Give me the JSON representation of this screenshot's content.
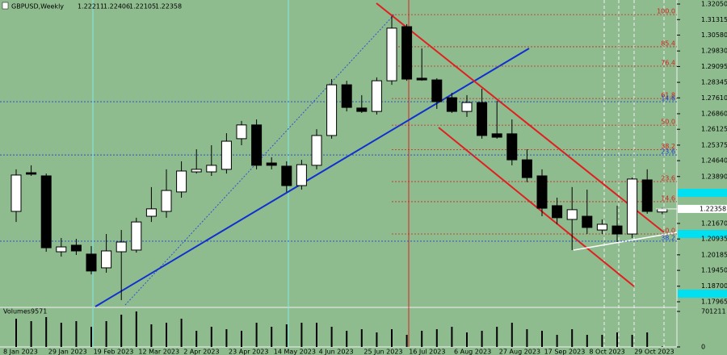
{
  "chart_data": {
    "type": "candlestick",
    "title": "GBPUSD,Weekly",
    "categories": [
      "8 Jan 2023",
      null,
      null,
      "29 Jan 2023",
      null,
      null,
      "19 Feb 2023",
      null,
      null,
      "12 Mar 2023",
      null,
      null,
      "2 Apr 2023",
      null,
      null,
      "23 Apr 2023",
      null,
      null,
      "14 May 2023",
      null,
      null,
      "4 Jun 2023",
      null,
      null,
      "25 Jun 2023",
      null,
      null,
      "16 Jul 2023",
      null,
      null,
      "6 Aug 2023",
      null,
      null,
      "27 Aug 2023",
      null,
      null,
      "17 Sep 2023",
      null,
      null,
      "8 Oct 2023",
      null,
      null,
      "29 Oct 2023",
      null
    ],
    "open": [
      1.2224,
      1.2407,
      1.2392,
      1.2033,
      1.2064,
      1.2022,
      1.1957,
      1.2033,
      1.2041,
      1.2201,
      1.2224,
      1.2316,
      1.2411,
      1.2411,
      1.2423,
      1.2568,
      1.2633,
      1.2453,
      1.2438,
      1.2346,
      1.2442,
      1.2583,
      1.2823,
      1.2713,
      1.2697,
      1.2842,
      1.3098,
      1.2854,
      1.2846,
      1.2762,
      1.2697,
      1.2739,
      1.2591,
      1.2591,
      1.2468,
      1.2392,
      1.2251,
      1.2186,
      1.2201,
      1.2136,
      1.2155,
      1.2117,
      1.2373,
      1.22211
    ],
    "high": [
      1.2423,
      1.2442,
      1.2403,
      1.2098,
      1.2094,
      1.206,
      1.2117,
      1.2136,
      1.2194,
      1.2339,
      1.2423,
      1.2461,
      1.2518,
      1.2537,
      1.2594,
      1.2652,
      1.2659,
      1.248,
      1.2461,
      1.2468,
      1.2613,
      1.285,
      1.2842,
      1.2774,
      1.2858,
      1.3148,
      1.311,
      1.2995,
      1.2854,
      1.2785,
      1.2774,
      1.2804,
      1.2747,
      1.2659,
      1.2518,
      1.2423,
      1.2289,
      1.2339,
      1.2327,
      1.2186,
      1.2251,
      1.2384,
      1.2423,
      1.22406
    ],
    "low": [
      1.2174,
      1.2392,
      1.2033,
      1.201,
      1.2018,
      1.1926,
      1.1934,
      1.1804,
      1.2029,
      1.2174,
      1.2194,
      1.2289,
      1.2403,
      1.2392,
      1.2403,
      1.2537,
      1.2423,
      1.2423,
      1.2316,
      1.2327,
      1.2423,
      1.2568,
      1.2697,
      1.269,
      1.2682,
      1.2823,
      1.2842,
      1.2842,
      1.2709,
      1.269,
      1.2671,
      1.2568,
      1.2568,
      1.2442,
      1.2362,
      1.2201,
      1.2163,
      1.2041,
      1.2117,
      1.2117,
      1.2079,
      1.2098,
      1.2213,
      1.22105
    ],
    "close": [
      1.2396,
      1.24,
      1.2052,
      1.2056,
      1.2037,
      1.1942,
      1.2037,
      1.2079,
      1.2174,
      1.2236,
      1.2323,
      1.2415,
      1.2423,
      1.2442,
      1.2556,
      1.2633,
      1.2442,
      1.2442,
      1.2346,
      1.2445,
      1.2583,
      1.2823,
      1.2716,
      1.2697,
      1.2842,
      1.3091,
      1.285,
      1.2846,
      1.2743,
      1.2697,
      1.2739,
      1.2583,
      1.2575,
      1.2468,
      1.2384,
      1.2239,
      1.2194,
      1.2232,
      1.2148,
      1.2163,
      1.2117,
      1.2377,
      1.2224,
      1.22358
    ],
    "up_color": "#ffffff",
    "down_color": "#000000",
    "ylim": [
      1.17736,
      1.32241
    ],
    "yticks": [
      {
        "value": 1.3205,
        "label": "1.32050"
      },
      {
        "value": 1.31315,
        "label": "1.31315"
      },
      {
        "value": 1.3058,
        "label": "1.30580"
      },
      {
        "value": 1.2983,
        "label": "1.29830"
      },
      {
        "value": 1.29095,
        "label": "1.29095"
      },
      {
        "value": 1.28345,
        "label": "1.28345"
      },
      {
        "value": 1.2761,
        "label": "1.27610"
      },
      {
        "value": 1.2686,
        "label": "1.26860"
      },
      {
        "value": 1.26125,
        "label": "1.26125"
      },
      {
        "value": 1.25375,
        "label": "1.25375"
      },
      {
        "value": 1.2464,
        "label": "1.24640"
      },
      {
        "value": 1.2389,
        "label": "1.23890"
      },
      {
        "value": 1.2167,
        "label": "1.21670"
      },
      {
        "value": 1.20935,
        "label": "1.20935"
      },
      {
        "value": 1.20185,
        "label": "1.20185"
      },
      {
        "value": 1.1945,
        "label": "1.19450"
      },
      {
        "value": 1.187,
        "label": "1.18700"
      },
      {
        "value": 1.17965,
        "label": "1.17965"
      }
    ],
    "fib_levels": [
      {
        "label": "100.0",
        "value": 1.3155,
        "color": "#d42020"
      },
      {
        "label": "85.4",
        "value": 1.3003,
        "color": "#d42020"
      },
      {
        "label": "76.4",
        "value": 1.2911,
        "color": "#d42020"
      },
      {
        "label": "61.8",
        "value": 1.2758,
        "color": "#d42020"
      },
      {
        "label": "14.6",
        "value": 1.2743,
        "color": "#2040d0"
      },
      {
        "label": "50.0",
        "value": 1.2632,
        "color": "#d42020"
      },
      {
        "label": "38.2",
        "value": 1.2516,
        "color": "#d42020"
      },
      {
        "label": "23.6",
        "value": 1.2491,
        "color": "#2040d0"
      },
      {
        "label": "23.6",
        "value": 1.2365,
        "color": "#d42020"
      },
      {
        "label": "14.6",
        "value": 1.227,
        "color": "#d42020"
      },
      {
        "label": "0.0",
        "value": 1.2117,
        "color": "#d42020"
      },
      {
        "label": "38.2",
        "value": 1.2083,
        "color": "#2040d0"
      }
    ],
    "volume": {
      "name": "Volumes",
      "color": "#000000",
      "values": [
        557800,
        510000,
        589700,
        478100,
        510000,
        398400,
        510000,
        637500,
        701200,
        446300,
        478100,
        557800,
        318700,
        398400,
        350600,
        318700,
        478100,
        398400,
        446300,
        478100,
        478100,
        398400,
        318700,
        350600,
        286900,
        350600,
        239100,
        318700,
        350600,
        398400,
        286900,
        318700,
        398400,
        478100,
        350600,
        318700,
        239100,
        350600,
        239100,
        239100,
        286900,
        239100,
        286900,
        9571
      ],
      "ylim": [
        0,
        701211
      ],
      "yticks": [
        0,
        701211
      ]
    }
  }
}
